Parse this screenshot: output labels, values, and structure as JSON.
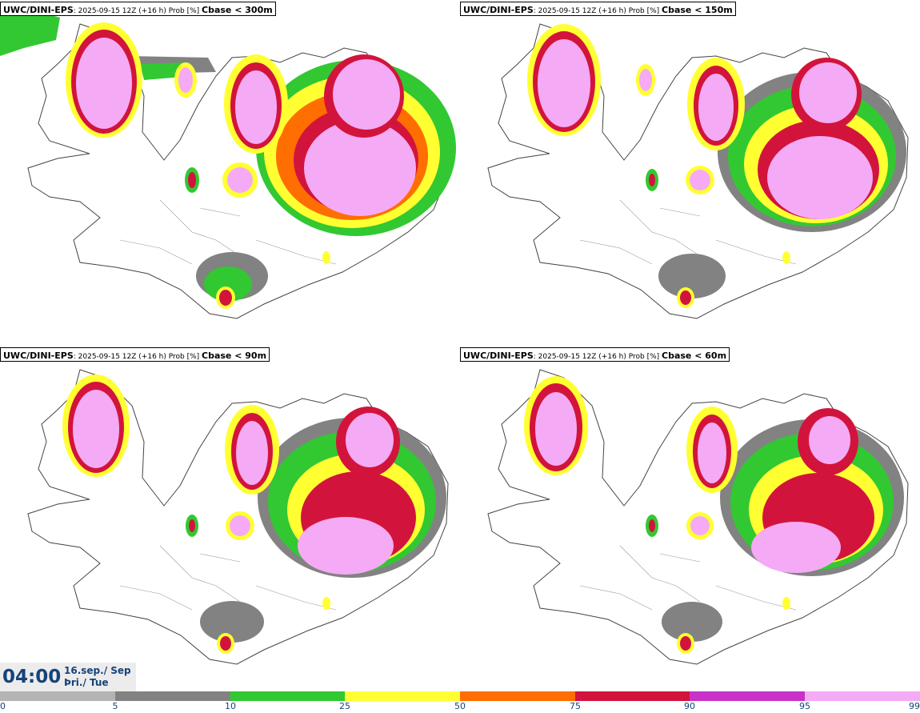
{
  "panels": [
    {
      "model": "UWC/DINI-EPS",
      "meta": ": 2025-09-15 12Z (+16 h) Prob [%] ",
      "threshold": "Cbase < 300m"
    },
    {
      "model": "UWC/DINI-EPS",
      "meta": ": 2025-09-15 12Z (+16 h) Prob [%] ",
      "threshold": "Cbase < 150m"
    },
    {
      "model": "UWC/DINI-EPS",
      "meta": ": 2025-09-15 12Z (+16 h) Prob [%] ",
      "threshold": "Cbase < 90m"
    },
    {
      "model": "UWC/DINI-EPS",
      "meta": ": 2025-09-15 12Z (+16 h) Prob [%] ",
      "threshold": "Cbase < 60m"
    }
  ],
  "valid_time": {
    "time": "04:00",
    "date_line1": "16.sep./ Sep",
    "date_line2": "Þri./ Tue"
  },
  "colorbar": {
    "ticks": [
      "0",
      "5",
      "10",
      "25",
      "50",
      "75",
      "90",
      "95",
      "99"
    ],
    "colors": [
      "#ffffff",
      "#b4b4b4",
      "#828282",
      "#32c832",
      "#ffff32",
      "#ff6e00",
      "#d2143c",
      "#c832c8",
      "#f5aaf5"
    ]
  }
}
